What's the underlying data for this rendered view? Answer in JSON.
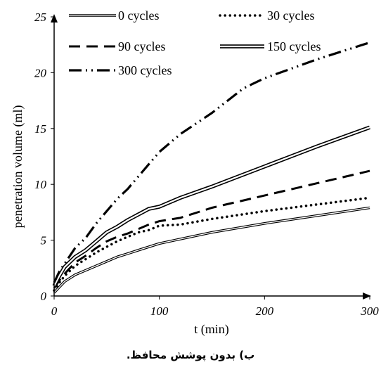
{
  "caption": "ب) بدون پوشش محافظ.",
  "chart_data": {
    "type": "line",
    "xlabel": "t (min)",
    "ylabel": "penetration volume (ml)",
    "xlim": [
      0,
      300
    ],
    "ylim": [
      0,
      25
    ],
    "x_ticks": [
      0,
      100,
      200,
      300
    ],
    "y_ticks": [
      0,
      5,
      10,
      15,
      20,
      25
    ],
    "grid": false,
    "legend_position": "top",
    "series": [
      {
        "name": "0 cycles",
        "style": "double-thin",
        "color": "#000000",
        "x": [
          0,
          5,
          10,
          20,
          30,
          40,
          50,
          60,
          70,
          80,
          90,
          100,
          120,
          150,
          200,
          250,
          300
        ],
        "y": [
          0.3,
          0.8,
          1.3,
          1.9,
          2.3,
          2.7,
          3.1,
          3.5,
          3.8,
          4.1,
          4.4,
          4.7,
          5.1,
          5.7,
          6.5,
          7.2,
          7.9
        ]
      },
      {
        "name": "30 cycles",
        "style": "dotted",
        "color": "#000000",
        "x": [
          0,
          5,
          10,
          20,
          30,
          40,
          50,
          60,
          70,
          80,
          90,
          100,
          120,
          150,
          200,
          250,
          300
        ],
        "y": [
          0.5,
          1.2,
          1.8,
          2.7,
          3.3,
          3.9,
          4.4,
          4.9,
          5.3,
          5.7,
          5.9,
          6.3,
          6.4,
          6.9,
          7.6,
          8.2,
          8.8
        ]
      },
      {
        "name": "90 cycles",
        "style": "dashed",
        "color": "#000000",
        "x": [
          0,
          5,
          10,
          20,
          30,
          40,
          50,
          60,
          70,
          80,
          90,
          100,
          120,
          150,
          200,
          250,
          300
        ],
        "y": [
          0.7,
          1.4,
          2.0,
          3.0,
          3.6,
          4.3,
          4.9,
          5.3,
          5.6,
          6.0,
          6.4,
          6.7,
          7.0,
          7.9,
          9.0,
          10.1,
          11.2
        ]
      },
      {
        "name": "150 cycles",
        "style": "double-thick",
        "color": "#000000",
        "x": [
          0,
          5,
          10,
          20,
          30,
          40,
          50,
          60,
          70,
          80,
          90,
          100,
          120,
          150,
          200,
          250,
          300
        ],
        "y": [
          0.9,
          1.8,
          2.6,
          3.5,
          4.1,
          4.9,
          5.7,
          6.2,
          6.8,
          7.3,
          7.8,
          8.0,
          8.8,
          9.8,
          11.6,
          13.4,
          15.1
        ]
      },
      {
        "name": "300 cycles",
        "style": "dash-dot-dot",
        "color": "#000000",
        "x": [
          0,
          5,
          10,
          20,
          30,
          40,
          50,
          60,
          70,
          80,
          90,
          100,
          120,
          150,
          180,
          200,
          250,
          300
        ],
        "y": [
          1.2,
          2.2,
          2.9,
          4.3,
          5.2,
          6.5,
          7.6,
          8.7,
          9.6,
          10.7,
          11.8,
          12.9,
          14.5,
          16.4,
          18.6,
          19.5,
          21.2,
          22.7
        ]
      }
    ]
  }
}
